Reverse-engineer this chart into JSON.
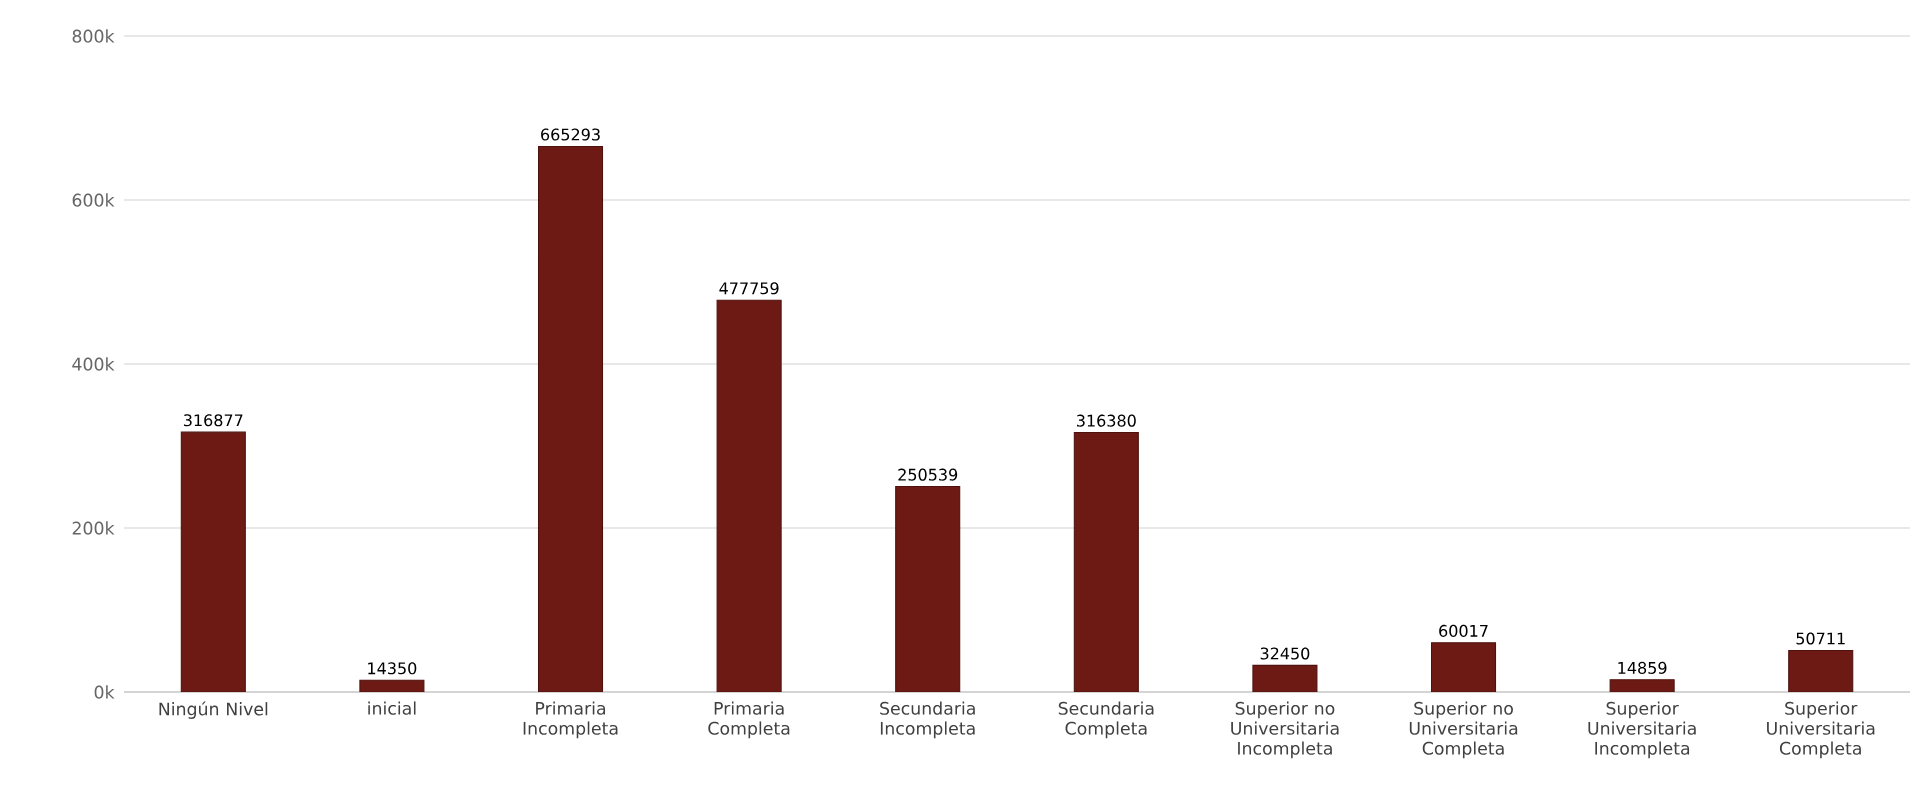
{
  "chart_data": {
    "type": "bar",
    "categories": [
      "Ningún Nivel",
      "inicial",
      "Primaria Incompleta",
      "Primaria Completa",
      "Secundaria Incompleta",
      "Secundaria Completa",
      "Superior no Universitaria Incompleta",
      "Superior no Universitaria Completa",
      "Superior Universitaria Incompleta",
      "Superior Universitaria Completa"
    ],
    "values": [
      316877,
      14350,
      665293,
      477759,
      250539,
      316380,
      32450,
      60017,
      14859,
      50711
    ],
    "color": "#6e1a14",
    "data_labels": true,
    "grid": "y",
    "ylim": [
      0,
      800000
    ],
    "yticks": [
      {
        "value": 0,
        "label": "0k"
      },
      {
        "value": 200000,
        "label": "200k"
      },
      {
        "value": 400000,
        "label": "400k"
      },
      {
        "value": 600000,
        "label": "600k"
      },
      {
        "value": 800000,
        "label": "800k"
      }
    ]
  }
}
